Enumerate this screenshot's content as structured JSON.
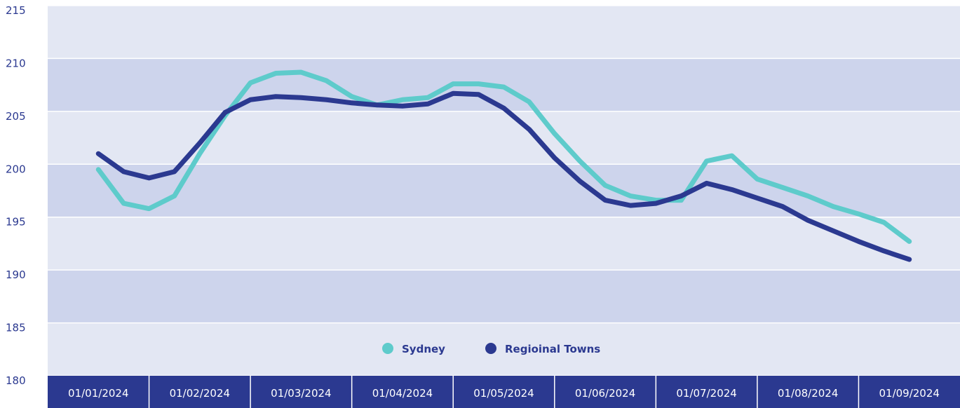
{
  "chart_data": {
    "type": "line",
    "categories": [
      "01/01/2024",
      null,
      null,
      null,
      "01/02/2024",
      null,
      null,
      null,
      "01/03/2024",
      null,
      null,
      null,
      "01/04/2024",
      null,
      null,
      null,
      "01/05/2024",
      null,
      null,
      null,
      "01/06/2024",
      null,
      null,
      null,
      "01/07/2024",
      null,
      null,
      null,
      "01/08/2024",
      null,
      null,
      null,
      "01/09/2024"
    ],
    "series": [
      {
        "name": "Sydney",
        "color": "#5ecbcb",
        "values": [
          199.5,
          196.3,
          195.8,
          197,
          201,
          204.6,
          207.7,
          208.6,
          208.7,
          207.9,
          206.4,
          205.6,
          206.1,
          206.3,
          207.6,
          207.6,
          207.3,
          205.9,
          202.9,
          200.3,
          198,
          197,
          196.6,
          196.6,
          200.3,
          200.8,
          198.6,
          197.8,
          197,
          196,
          195.3,
          194.5,
          192.7
        ]
      },
      {
        "name": "Regioinal Towns",
        "color": "#2b3990",
        "values": [
          201,
          199.3,
          198.7,
          199.3,
          202,
          204.9,
          206.1,
          206.4,
          206.3,
          206.1,
          205.8,
          205.6,
          205.5,
          205.7,
          206.7,
          206.6,
          205.3,
          203.3,
          200.6,
          198.4,
          196.6,
          196.1,
          196.3,
          197,
          198.2,
          197.6,
          196.8,
          196,
          194.7,
          193.7,
          192.7,
          191.8,
          191
        ]
      }
    ],
    "ylim": [
      180,
      215
    ],
    "yticks": [
      180,
      185,
      190,
      195,
      200,
      205,
      210,
      215
    ],
    "legend": "bottom"
  }
}
